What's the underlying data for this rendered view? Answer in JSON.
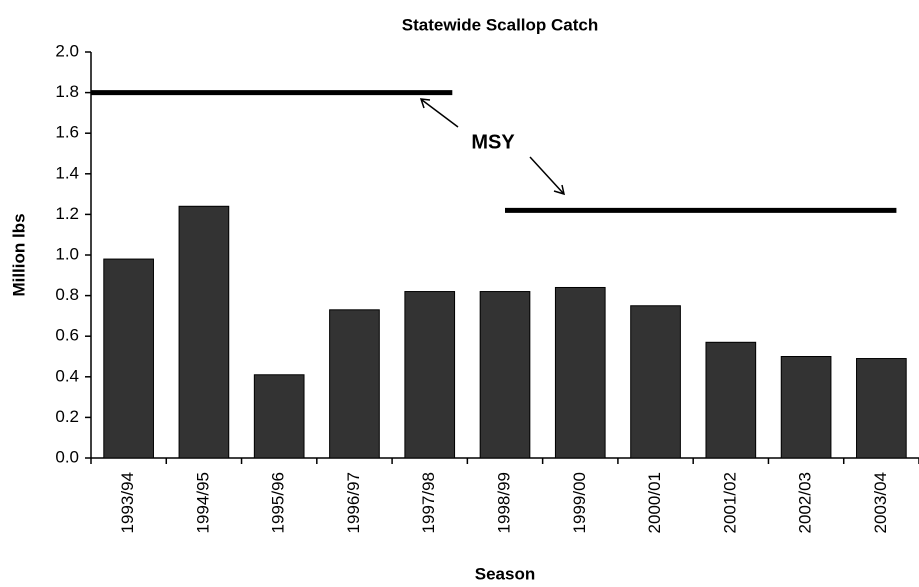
{
  "chart_data": {
    "type": "bar",
    "title": "Statewide Scallop Catch",
    "x_label": "Season",
    "y_label": "Million lbs",
    "categories": [
      "1993/94",
      "1994/95",
      "1995/96",
      "1996/97",
      "1997/98",
      "1998/99",
      "1999/00",
      "2000/01",
      "2001/02",
      "2002/03",
      "2003/04"
    ],
    "values": [
      0.98,
      1.24,
      0.41,
      0.73,
      0.82,
      0.82,
      0.84,
      0.75,
      0.57,
      0.5,
      0.49
    ],
    "color": "#333333",
    "ylim": [
      0,
      2.0
    ],
    "yticks": [
      {
        "value": 0,
        "label": "0.0"
      },
      0.2,
      0.4,
      0.6,
      0.8,
      {
        "value": 1.0,
        "label": "1.0"
      },
      1.2,
      1.4,
      1.6,
      1.8,
      {
        "value": 2.0,
        "label": "2.0"
      }
    ],
    "grid": false,
    "reference_lines": [
      {
        "value": 1.8
      },
      {
        "value": 1.22
      }
    ],
    "annotation": "MSY"
  }
}
